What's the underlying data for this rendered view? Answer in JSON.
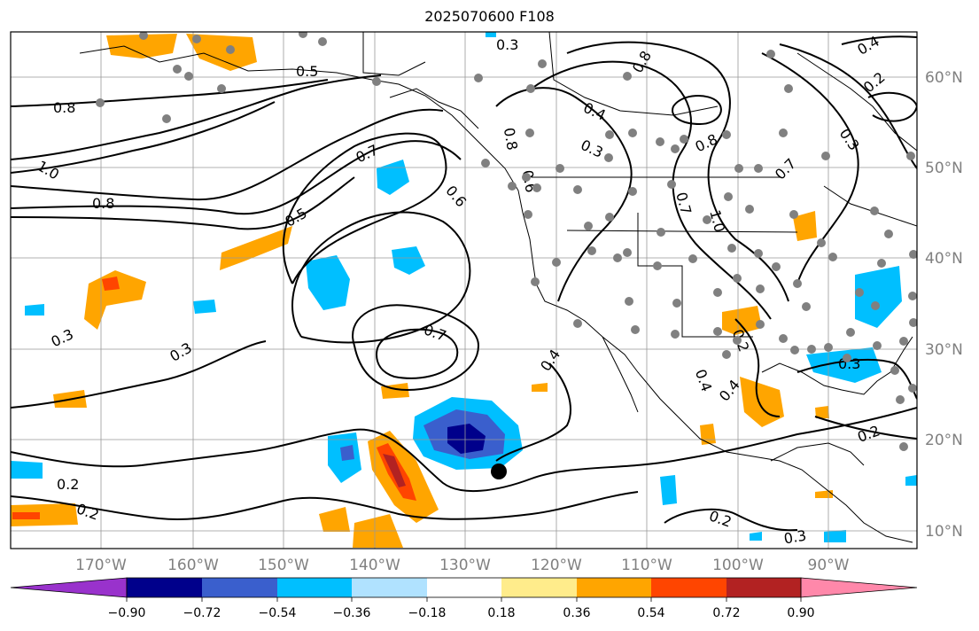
{
  "title": "2025070600 F108",
  "map": {
    "lon_labels": [
      "170°W",
      "160°W",
      "150°W",
      "140°W",
      "130°W",
      "120°W",
      "110°W",
      "100°W",
      "90°W"
    ],
    "lat_labels": [
      "60°N",
      "50°N",
      "40°N",
      "30°N",
      "20°N",
      "10°N"
    ],
    "contour_labels": [
      "0.8",
      "1.0",
      "0.8",
      "0.7",
      "0.5",
      "0.6",
      "0.3",
      "0.3",
      "0.7",
      "0.4",
      "0.2",
      "0.2",
      "0.3",
      "0.8",
      "0.4",
      "0.3",
      "0.8",
      "1.0",
      "0.8",
      "0.7",
      "0.3",
      "0.2",
      "0.4",
      "0.3",
      "0.2",
      "0.2",
      "0.3",
      "0.4",
      "0.4",
      "0.2",
      "0.5",
      "0.6",
      "0.7"
    ],
    "station_marker_color": "#808080",
    "storm_marker_color": "#000000"
  },
  "colorbar": {
    "tick_labels": [
      "−0.90",
      "−0.72",
      "−0.54",
      "−0.36",
      "−0.18",
      "0.18",
      "0.36",
      "0.54",
      "0.72",
      "0.90"
    ],
    "colors": [
      "#9932cc",
      "#00008b",
      "#3a5fcd",
      "#00bfff",
      "#b0e2ff",
      "#ffffff",
      "#ffec8b",
      "#ffa500",
      "#ff4500",
      "#b22222",
      "#ff88aa"
    ]
  }
}
